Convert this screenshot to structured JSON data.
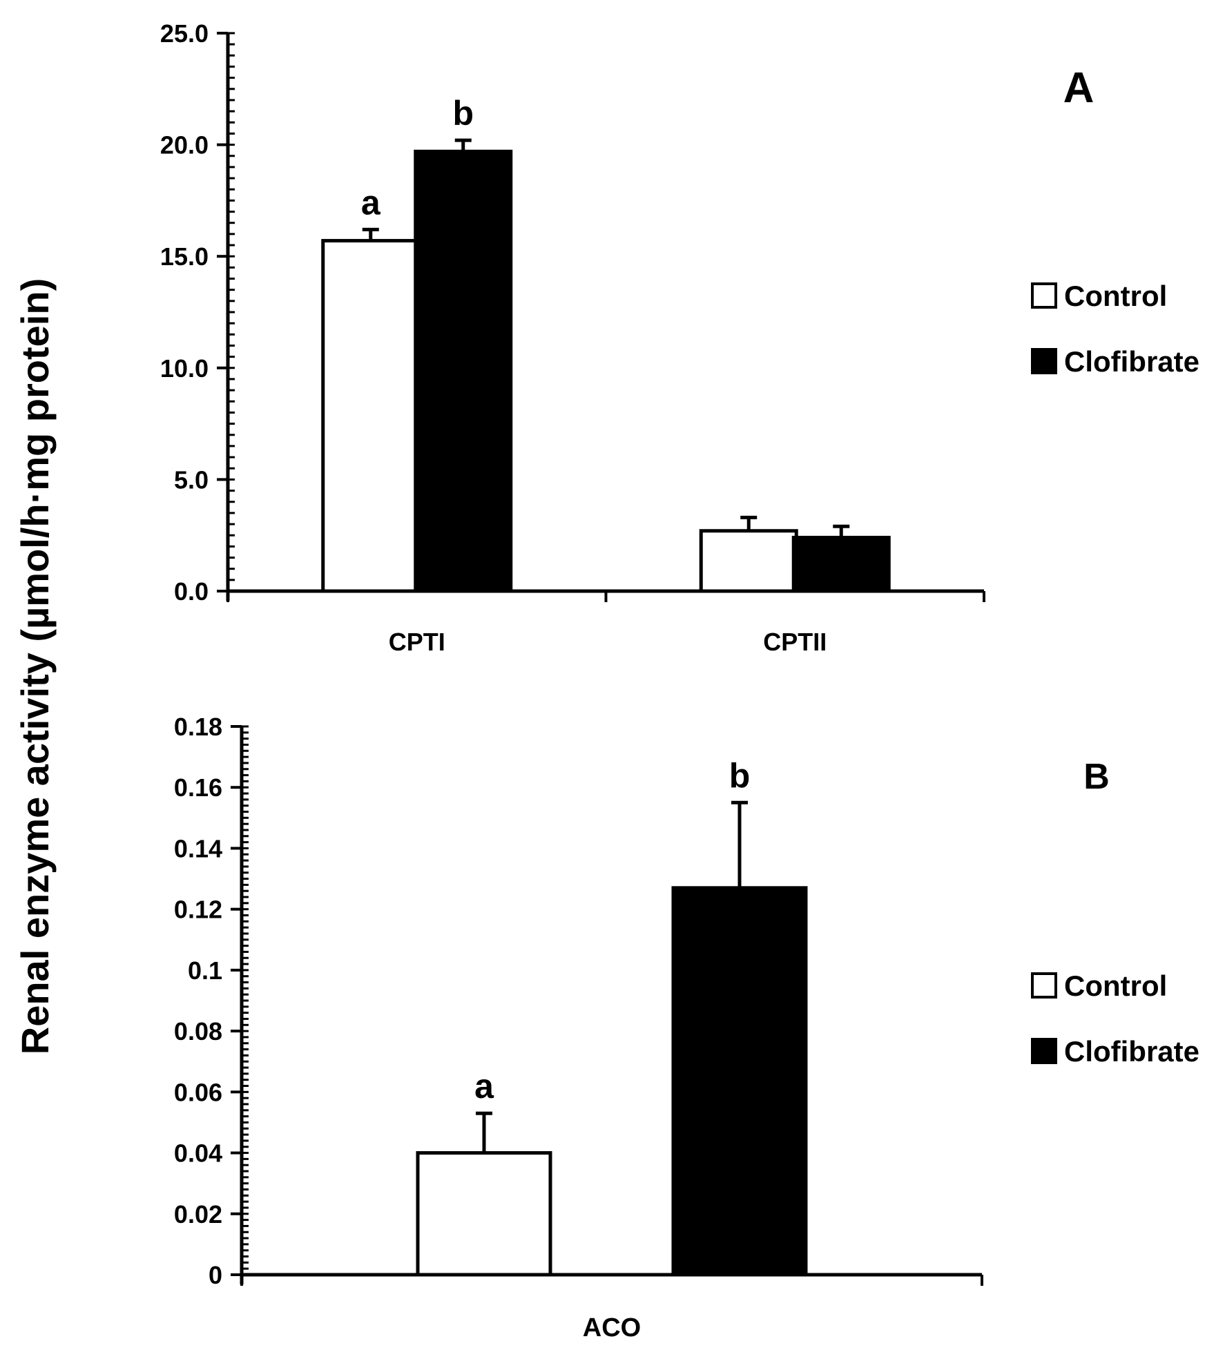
{
  "figure": {
    "shared_ylabel": "Renal enzyme activity (µmol/h·mg protein)"
  },
  "chart_data": [
    {
      "type": "bar",
      "panel": "A",
      "categories": [
        "CPTI",
        "CPTII"
      ],
      "series": [
        {
          "name": "Control",
          "color": "#ffffff",
          "values": [
            15.7,
            2.7
          ],
          "errors": [
            0.5,
            0.6
          ],
          "labels": [
            "a",
            ""
          ]
        },
        {
          "name": "Clofibrate",
          "color": "#000000",
          "values": [
            19.7,
            2.4
          ],
          "errors": [
            0.5,
            0.5
          ],
          "labels": [
            "b",
            ""
          ]
        }
      ],
      "ylim": [
        0,
        25
      ],
      "major_step": 5,
      "minor_step": 0.5,
      "tick_labels": [
        "0.0",
        "5.0",
        "10.0",
        "15.0",
        "20.0",
        "25.0"
      ],
      "legend_position": "right",
      "grid": false
    },
    {
      "type": "bar",
      "panel": "B",
      "categories": [
        "ACO"
      ],
      "series": [
        {
          "name": "Control",
          "color": "#ffffff",
          "values": [
            0.04
          ],
          "errors": [
            0.013
          ],
          "labels": [
            "a"
          ]
        },
        {
          "name": "Clofibrate",
          "color": "#000000",
          "values": [
            0.127
          ],
          "errors": [
            0.028
          ],
          "labels": [
            "b"
          ]
        }
      ],
      "ylim": [
        0,
        0.18
      ],
      "major_step": 0.02,
      "minor_step": 0.002,
      "tick_labels": [
        "0",
        "0.02",
        "0.04",
        "0.06",
        "0.08",
        "0.1",
        "0.12",
        "0.14",
        "0.16",
        "0.18"
      ],
      "legend_position": "right",
      "grid": false
    }
  ]
}
